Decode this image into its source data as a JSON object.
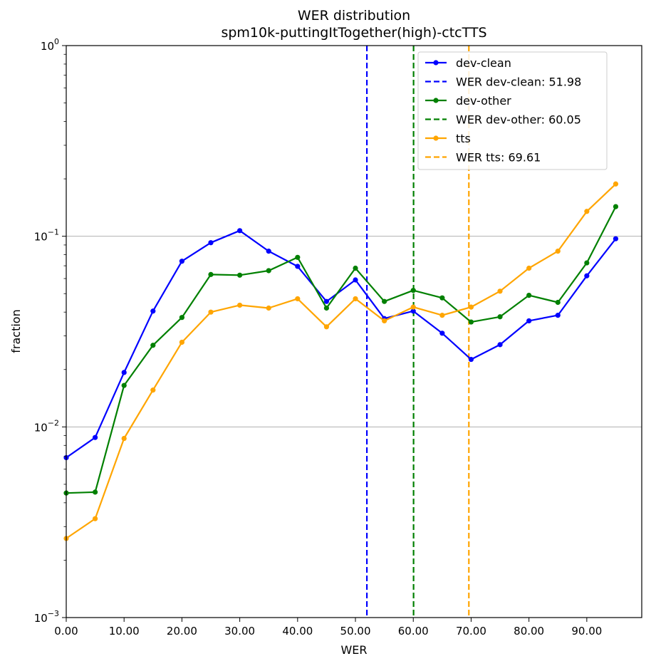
{
  "chart_data": {
    "type": "line",
    "title": "WER distribution",
    "subtitle": "spm10k-puttingItTogether(high)-ctcTTS",
    "xlabel": "WER",
    "ylabel": "fraction",
    "xlim": [
      0,
      99.5
    ],
    "ylim": [
      0.001,
      1
    ],
    "y_scale": "log",
    "x_ticks": [
      "0.00",
      "10.00",
      "20.00",
      "30.00",
      "40.00",
      "50.00",
      "60.00",
      "70.00",
      "80.00",
      "90.00"
    ],
    "y_tick_labels": [
      {
        "base": "10",
        "exp": "0",
        "value": 1
      },
      {
        "base": "10",
        "exp": "−1",
        "value": 0.1
      },
      {
        "base": "10",
        "exp": "−2",
        "value": 0.01
      },
      {
        "base": "10",
        "exp": "−3",
        "value": 0.001
      }
    ],
    "y_gridlines": [
      0.1,
      0.01
    ],
    "x": [
      0,
      5,
      10,
      15,
      20,
      25,
      30,
      35,
      40,
      45,
      50,
      55,
      60,
      65,
      70,
      75,
      80,
      85,
      90,
      95
    ],
    "series": [
      {
        "name": "dev-clean",
        "color": "#0000ff",
        "values": [
          0.0069,
          0.0088,
          0.0193,
          0.0405,
          0.074,
          0.0925,
          0.107,
          0.0835,
          0.0695,
          0.0455,
          0.059,
          0.037,
          0.0405,
          0.031,
          0.0226,
          0.027,
          0.036,
          0.0385,
          0.062,
          0.097
        ]
      },
      {
        "name": "dev-other",
        "color": "#008000",
        "values": [
          0.0045,
          0.00455,
          0.0165,
          0.0268,
          0.0375,
          0.063,
          0.0625,
          0.066,
          0.0775,
          0.042,
          0.068,
          0.0455,
          0.052,
          0.0475,
          0.0355,
          0.0378,
          0.049,
          0.045,
          0.0725,
          0.143
        ]
      },
      {
        "name": "tts",
        "color": "#ffa500",
        "values": [
          0.0026,
          0.0033,
          0.0087,
          0.0156,
          0.0278,
          0.04,
          0.0435,
          0.042,
          0.047,
          0.0335,
          0.047,
          0.036,
          0.0425,
          0.0385,
          0.0425,
          0.0515,
          0.068,
          0.0835,
          0.135,
          0.188
        ]
      }
    ],
    "vlines": [
      {
        "label": "WER dev-clean: 51.98",
        "x": 51.98,
        "color": "#0000ff"
      },
      {
        "label": "WER dev-other: 60.05",
        "x": 60.05,
        "color": "#008000"
      },
      {
        "label": "WER tts: 69.61",
        "x": 69.61,
        "color": "#ffa500"
      }
    ],
    "legend_position": "top-right",
    "grid": "horizontal"
  }
}
